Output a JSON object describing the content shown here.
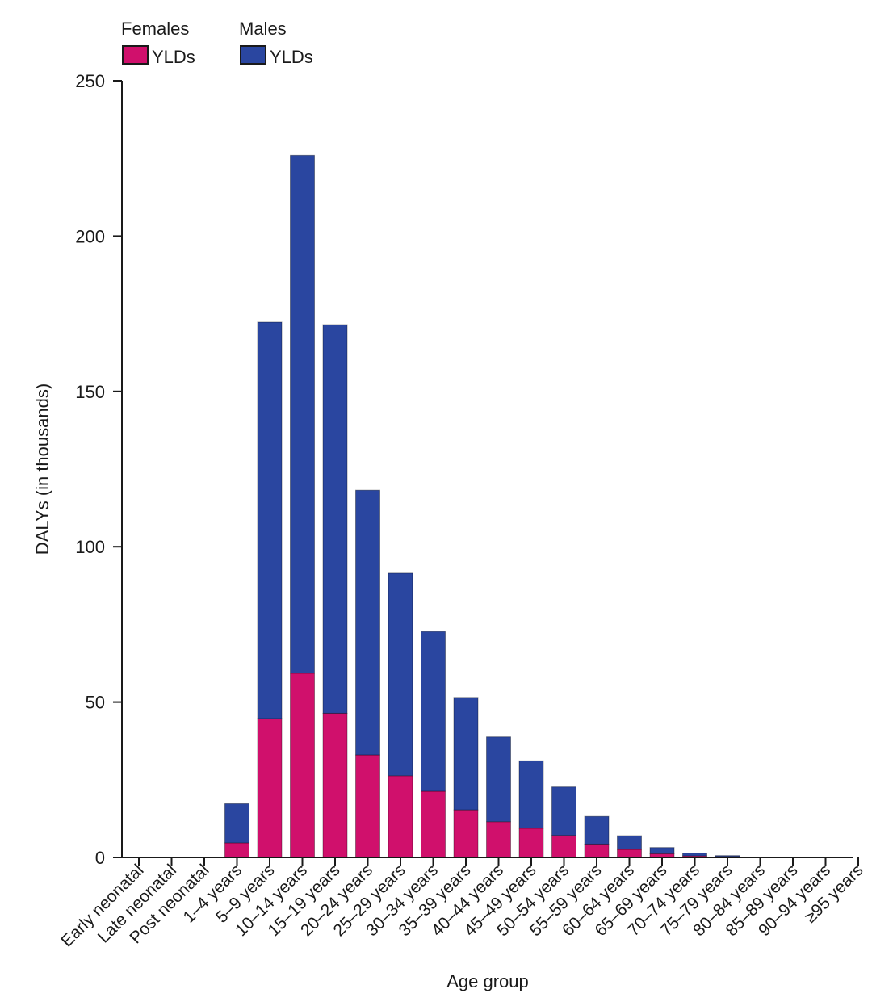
{
  "chart_data": {
    "type": "bar",
    "stacked": true,
    "title": "",
    "xlabel": "Age group",
    "ylabel": "DALYs (in thousands)",
    "ylim": [
      0,
      250
    ],
    "yticks": [
      "0",
      "50",
      "100",
      "150",
      "200",
      "250"
    ],
    "grid": false,
    "legend": {
      "placement": "top-left",
      "groups": [
        {
          "group": "Females",
          "label": "YLDs",
          "color": "#D0106C"
        },
        {
          "group": "Males",
          "label": "YLDs",
          "color": "#2A46A0"
        }
      ]
    },
    "categories": [
      "Early neonatal",
      "Late neonatal",
      "Post neonatal",
      "1–4 years",
      "5–9 years",
      "10–14 years",
      "15–19 years",
      "20–24 years",
      "25–29 years",
      "30–34 years",
      "35–39 years",
      "40–44 years",
      "45–49 years",
      "50–54 years",
      "55–59 years",
      "60–64 years",
      "65–69 years",
      "70–74 years",
      "75–79 years",
      "80–84 years",
      "85–89 years",
      "90–94 years",
      "≥95 years"
    ],
    "series": [
      {
        "name": "Females YLDs",
        "color": "#D0106C",
        "values": [
          0,
          0,
          0,
          4.7,
          44.7,
          59.3,
          46.4,
          33.0,
          26.3,
          21.3,
          15.3,
          11.5,
          9.4,
          7.1,
          4.3,
          2.6,
          1.2,
          0.5,
          0.3,
          0,
          0,
          0,
          0
        ]
      },
      {
        "name": "Males YLDs",
        "color": "#2A46A0",
        "values": [
          0,
          0,
          0,
          12.6,
          127.6,
          166.7,
          125.1,
          85.2,
          65.2,
          51.4,
          36.2,
          27.3,
          21.7,
          15.6,
          8.9,
          4.4,
          2.0,
          0.9,
          0.3,
          0,
          0,
          0,
          0
        ]
      }
    ]
  },
  "legend_header": {
    "females": "Females",
    "males": "Males",
    "females_item": "YLDs",
    "males_item": "YLDs"
  }
}
